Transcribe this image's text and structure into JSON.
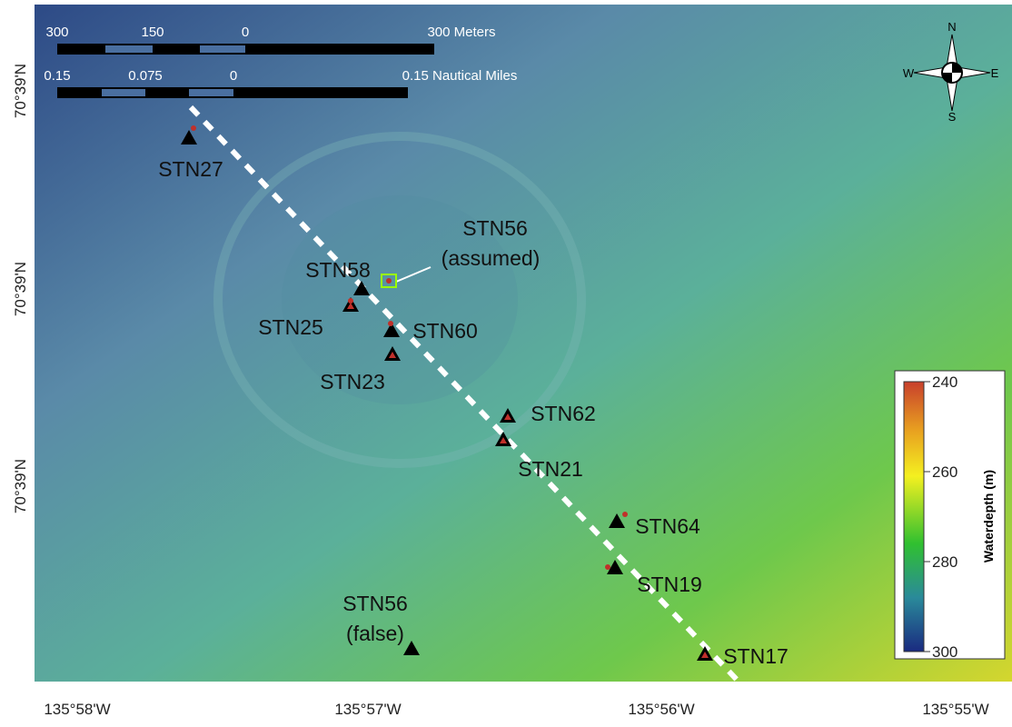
{
  "map": {
    "scale_bars": [
      {
        "labels": [
          "300",
          "150",
          "0",
          "300 Meters"
        ]
      },
      {
        "labels": [
          "0.15",
          "0.075",
          "0",
          "0.15 Nautical Miles"
        ]
      }
    ],
    "compass": {
      "n": "N",
      "s": "S",
      "e": "E",
      "w": "W"
    },
    "x_axis_labels": [
      "135°58'W",
      "135°57'W",
      "135°56'W",
      "135°55'W"
    ],
    "y_axis_labels": [
      "70°39'N",
      "70°39'N",
      "70°39'N"
    ],
    "stations": [
      {
        "label": "STN27"
      },
      {
        "label": "STN58"
      },
      {
        "label": "STN25"
      },
      {
        "label": "STN60"
      },
      {
        "label": "STN23"
      },
      {
        "label": "STN62"
      },
      {
        "label": "STN21"
      },
      {
        "label": "STN64"
      },
      {
        "label": "STN19"
      },
      {
        "label": "STN17"
      },
      {
        "lines": [
          "STN56",
          "(false)"
        ]
      },
      {
        "lines": [
          "STN56",
          "(assumed)"
        ]
      }
    ],
    "colorbar": {
      "title": "Waterdepth (m)",
      "lim": [
        240,
        300
      ],
      "ticks": [
        240,
        260,
        280,
        300
      ]
    }
  }
}
